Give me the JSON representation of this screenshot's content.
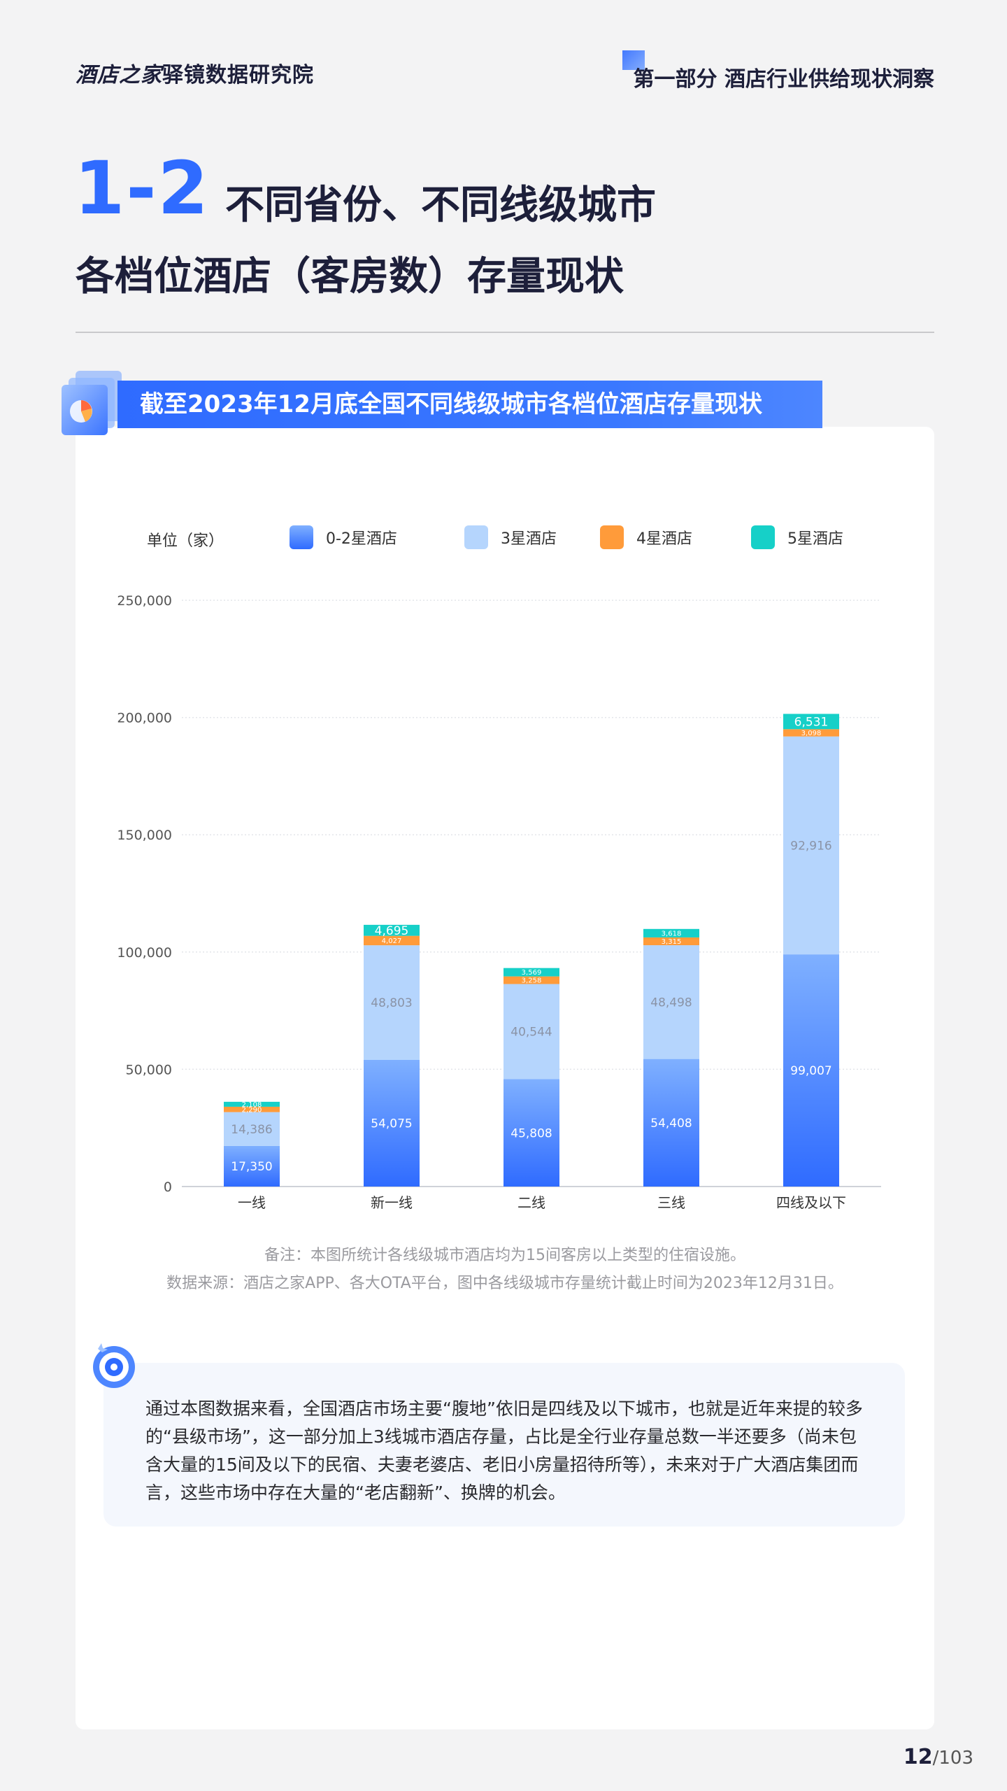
{
  "header": {
    "logo_brand": "酒店之家",
    "logo_sub": "驿镜数据研究院",
    "section": "第一部分 酒店行业供给现状洞察"
  },
  "title": {
    "number": "1-2",
    "line1": "不同省份、不同线级城市",
    "line2": "各档位酒店（客房数）存量现状"
  },
  "chart_title": "截至2023年12月底全国不同线级城市各档位酒店存量现状",
  "legend": {
    "unit": "单位（家）",
    "items": [
      "0-2星酒店",
      "3星酒店",
      "4星酒店",
      "5星酒店"
    ]
  },
  "colors": {
    "accent": "#2f6bff",
    "s0_top": "#7fb0ff",
    "s0_bottom": "#2f6bff",
    "s1": "#b5d5fd",
    "s2": "#ff9b3a",
    "s3": "#16d0c8"
  },
  "chart_data": {
    "type": "bar",
    "stacked": true,
    "categories": [
      "一线",
      "新一线",
      "二线",
      "三线",
      "四线及以下"
    ],
    "series": [
      {
        "name": "0-2星酒店",
        "values": [
          17350,
          54075,
          45808,
          54408,
          99007
        ]
      },
      {
        "name": "3星酒店",
        "values": [
          14386,
          48803,
          40544,
          48498,
          92916
        ]
      },
      {
        "name": "4星酒店",
        "values": [
          2290,
          4027,
          3258,
          3315,
          3098
        ]
      },
      {
        "name": "5星酒店",
        "values": [
          2108,
          4695,
          3569,
          3618,
          6531
        ]
      }
    ],
    "labels": [
      [
        "17,350",
        "54,075",
        "45,808",
        "54,408",
        "99,007"
      ],
      [
        "14,386",
        "48,803",
        "40,544",
        "48,498",
        "92,916"
      ],
      [
        "2,290",
        "4,027",
        "3,258",
        "3,315",
        "3,098"
      ],
      [
        "2,108",
        "4,695",
        "3,569",
        "3,618",
        "6,531"
      ]
    ],
    "yticks": [
      "0",
      "50,000",
      "100,000",
      "150,000",
      "200,000",
      "250,000"
    ],
    "ylim": [
      0,
      250000
    ],
    "grid": true,
    "legend_position": "top"
  },
  "notes": {
    "remark": "备注：本图所统计各线级城市酒店均为15间客房以上类型的住宿设施。",
    "source": "数据来源：酒店之家APP、各大OTA平台，图中各线级城市存量统计截止时间为2023年12月31日。"
  },
  "summary": "通过本图数据来看，全国酒店市场主要“腹地”依旧是四线及以下城市，也就是近年来提的较多的“县级市场”，这一部分加上3线城市酒店存量，占比是全行业存量总数一半还要多（尚未包含大量的15间及以下的民宿、夫妻老婆店、老旧小房量招待所等），未来对于广大酒店集团而言，这些市场中存在大量的“老店翻新”、换牌的机会。",
  "page": {
    "current": "12",
    "total": "/103"
  }
}
